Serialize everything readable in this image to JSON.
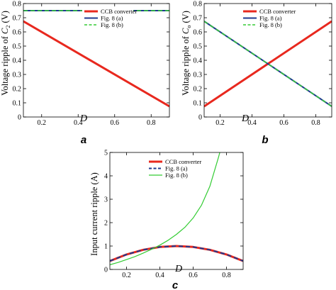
{
  "chart_data": [
    {
      "type": "line",
      "panel_label": "a",
      "xlabel": "D",
      "ylabel_prefix": "Voltage ripple of ",
      "ylabel_sym": "C",
      "ylabel_sub": "2",
      "ylabel_suffix": " (V)",
      "xlim": [
        0.1,
        0.9
      ],
      "ylim": [
        0,
        0.8
      ],
      "xticks": [
        0.2,
        0.4,
        0.6,
        0.8
      ],
      "xtick_labels": [
        "0.2",
        "0.4",
        "0.6",
        "0.8"
      ],
      "yticks": [
        0,
        0.1,
        0.2,
        0.3,
        0.4,
        0.5,
        0.6,
        0.7,
        0.8
      ],
      "ytick_labels": [
        "0",
        "0.1",
        "0.2",
        "0.3",
        "0.4",
        "0.5",
        "0.6",
        "0.7",
        "0.8"
      ],
      "legend": "top-right",
      "series": [
        {
          "name": "CCB converter",
          "color": "#e8281e",
          "dash": "solid",
          "width": 3,
          "x": [
            0.1,
            0.9
          ],
          "y": [
            0.675,
            0.075
          ]
        },
        {
          "name": "Fig. 8 (a)",
          "color": "#1f3a8f",
          "dash": "solid",
          "width": 2,
          "x": [
            0.1,
            0.9
          ],
          "y": [
            0.75,
            0.75
          ]
        },
        {
          "name": "Fig. 8 (b)",
          "color": "#33cc33",
          "dash": "dashed",
          "width": 1.5,
          "x": [
            0.1,
            0.9
          ],
          "y": [
            0.75,
            0.75
          ]
        }
      ]
    },
    {
      "type": "line",
      "panel_label": "b",
      "xlabel": "D",
      "ylabel_prefix": "Voltage ripple of ",
      "ylabel_sym": "C",
      "ylabel_sub": "o",
      "ylabel_suffix": " (V)",
      "xlim": [
        0.1,
        0.9
      ],
      "ylim": [
        0,
        0.8
      ],
      "xticks": [
        0.2,
        0.4,
        0.6,
        0.8
      ],
      "xtick_labels": [
        "0.2",
        "0.4",
        "0.6",
        "0.8"
      ],
      "yticks": [
        0,
        0.1,
        0.2,
        0.3,
        0.4,
        0.5,
        0.6,
        0.7,
        0.8
      ],
      "ytick_labels": [
        "0",
        "0.1",
        "0.2",
        "0.3",
        "0.4",
        "0.5",
        "0.6",
        "0.7",
        "0.8"
      ],
      "legend": "top-right",
      "series": [
        {
          "name": "CCB converter",
          "color": "#e8281e",
          "dash": "solid",
          "width": 3,
          "x": [
            0.1,
            0.9
          ],
          "y": [
            0.075,
            0.675
          ]
        },
        {
          "name": "Fig. 8 (a)",
          "color": "#1f3a8f",
          "dash": "solid",
          "width": 2,
          "x": [
            0.1,
            0.9
          ],
          "y": [
            0.675,
            0.075
          ]
        },
        {
          "name": "Fig. 8 (b)",
          "color": "#33cc33",
          "dash": "dashed",
          "width": 1.5,
          "x": [
            0.1,
            0.9
          ],
          "y": [
            0.675,
            0.075
          ]
        }
      ]
    },
    {
      "type": "line",
      "panel_label": "c",
      "xlabel": "D",
      "ylabel": "Input current ripple (A)",
      "xlim": [
        0.1,
        0.9
      ],
      "ylim": [
        0,
        5
      ],
      "xticks": [
        0.2,
        0.4,
        0.6,
        0.8
      ],
      "xtick_labels": [
        "0.2",
        "0.4",
        "0.6",
        "0.8"
      ],
      "yticks": [
        0,
        1,
        2,
        3,
        4,
        5
      ],
      "ytick_labels": [
        "0",
        "1",
        "2",
        "3",
        "4",
        "5"
      ],
      "legend": "top-right",
      "series": [
        {
          "name": "CCB converter",
          "color": "#e8281e",
          "dash": "solid",
          "width": 3,
          "x": [
            0.1,
            0.2,
            0.3,
            0.4,
            0.5,
            0.6,
            0.7,
            0.8,
            0.9
          ],
          "y": [
            0.36,
            0.64,
            0.84,
            0.96,
            1.0,
            0.96,
            0.84,
            0.64,
            0.36
          ]
        },
        {
          "name": "Fig. 8 (a)",
          "color": "#1f3a8f",
          "dash": "dashed",
          "width": 2,
          "x": [
            0.1,
            0.2,
            0.3,
            0.4,
            0.5,
            0.6,
            0.7,
            0.8,
            0.9
          ],
          "y": [
            0.36,
            0.64,
            0.84,
            0.96,
            1.0,
            0.96,
            0.84,
            0.64,
            0.36
          ]
        },
        {
          "name": "Fig. 8 (b)",
          "color": "#33cc33",
          "dash": "solid",
          "width": 1.2,
          "x": [
            0.1,
            0.15,
            0.2,
            0.25,
            0.3,
            0.35,
            0.4,
            0.45,
            0.5,
            0.55,
            0.6,
            0.65,
            0.7,
            0.75,
            0.76
          ],
          "y": [
            0.2,
            0.3,
            0.42,
            0.55,
            0.7,
            0.86,
            1.04,
            1.25,
            1.5,
            1.8,
            2.2,
            2.75,
            3.55,
            4.75,
            5.0
          ]
        }
      ]
    }
  ]
}
